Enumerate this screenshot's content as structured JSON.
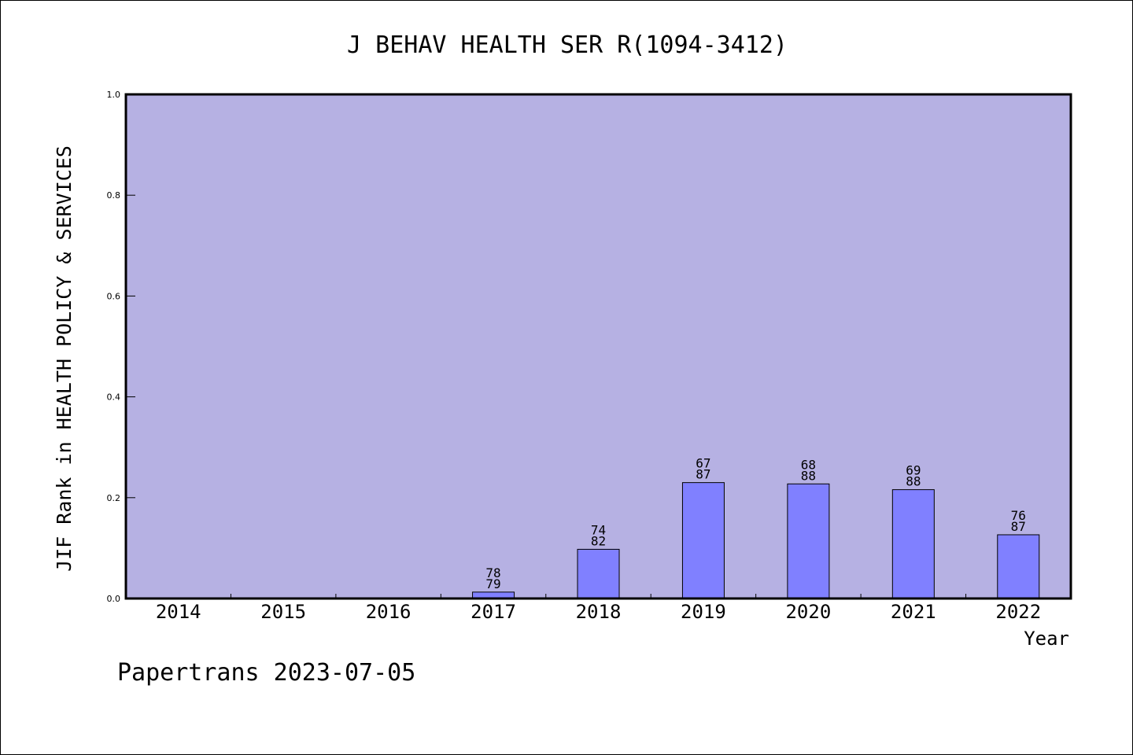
{
  "chart_data": {
    "type": "bar",
    "title": "J BEHAV HEALTH SER R(1094-3412)",
    "xlabel": "Year",
    "ylabel": "JIF Rank in HEALTH POLICY & SERVICES",
    "ylim": [
      0,
      1.0
    ],
    "yticks": [
      "0.0",
      "0.2",
      "0.4",
      "0.6",
      "0.8",
      "1.0"
    ],
    "grid": false,
    "categories": [
      "2014",
      "2015",
      "2016",
      "2017",
      "2018",
      "2019",
      "2020",
      "2021",
      "2022"
    ],
    "values": [
      null,
      null,
      null,
      0.0127,
      0.0976,
      0.2299,
      0.2273,
      0.2159,
      0.1264
    ],
    "rank": [
      null,
      null,
      null,
      "78",
      "74",
      "67",
      "68",
      "69",
      "76"
    ],
    "total": [
      null,
      null,
      null,
      "79",
      "82",
      "87",
      "88",
      "88",
      "87"
    ],
    "colors": {
      "plot_background": "#b6b1e3",
      "bar_fill": "#8080ff",
      "bar_stroke": "#000000"
    }
  },
  "footer": {
    "text": "Papertrans 2023-07-05"
  }
}
